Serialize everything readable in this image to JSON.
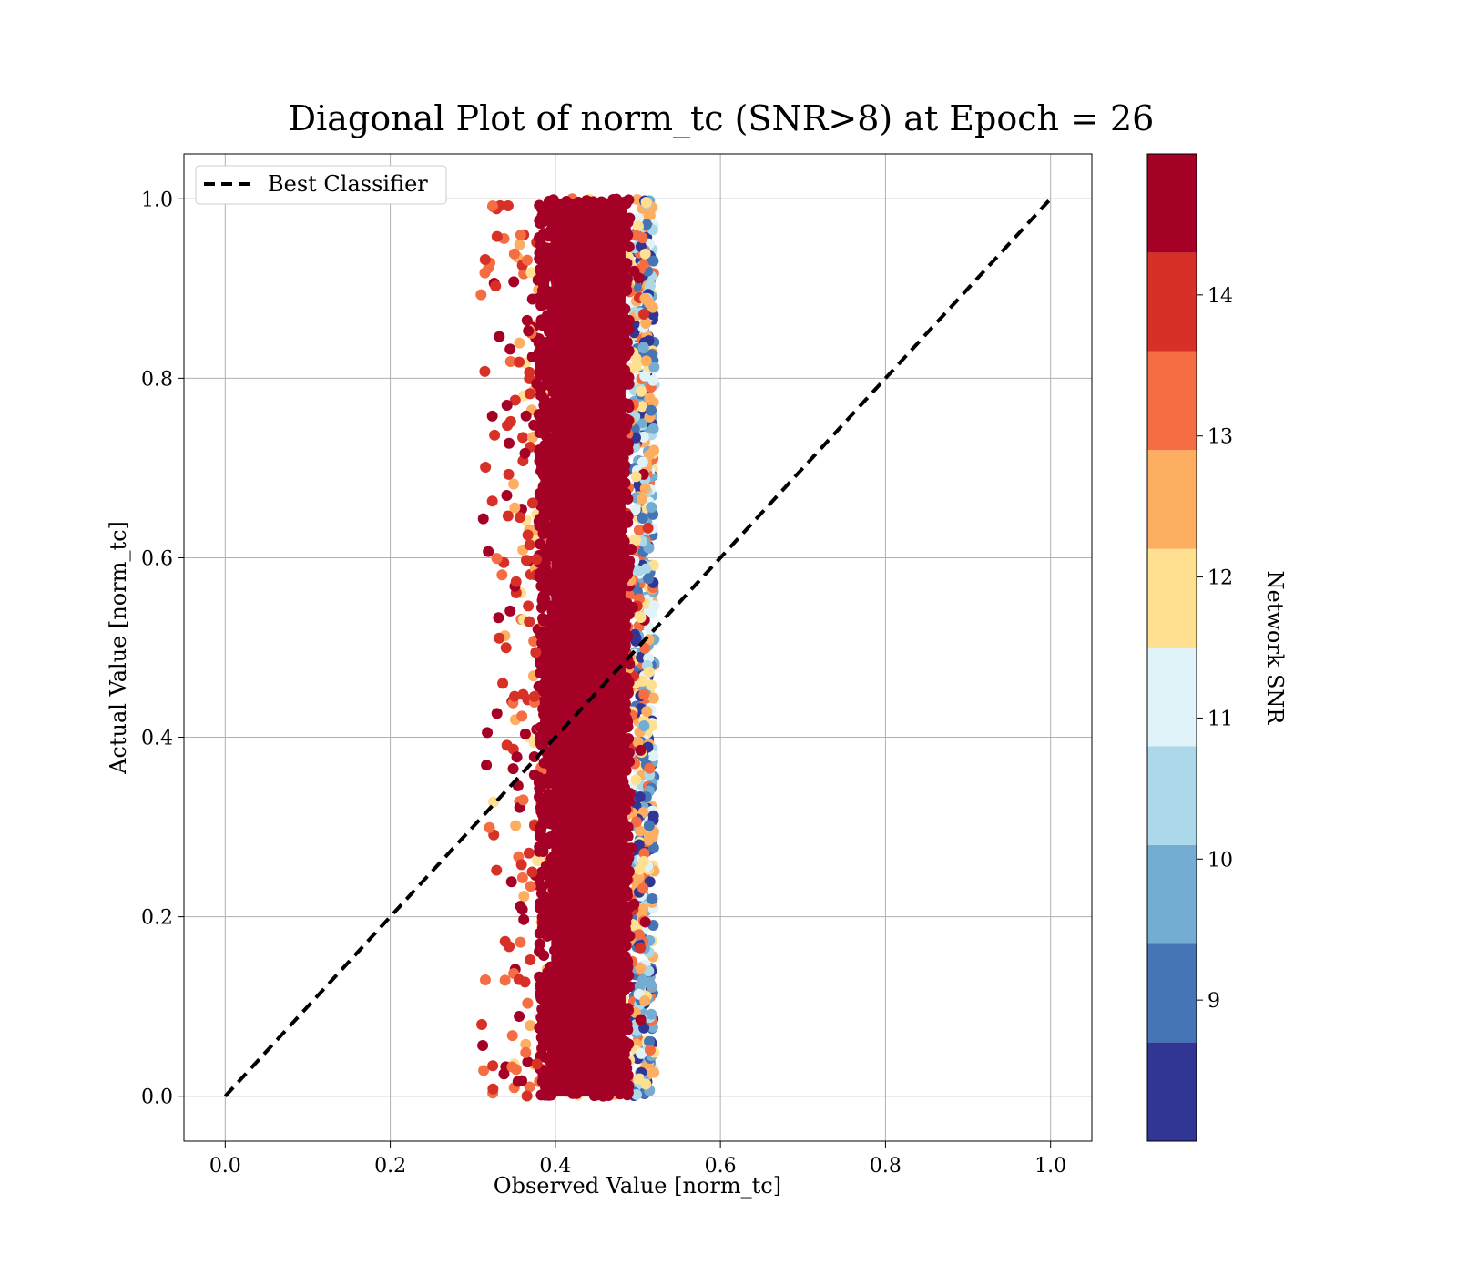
{
  "chart_data": {
    "type": "scatter",
    "title": "Diagonal Plot of norm_tc (SNR>8) at Epoch = 26",
    "xlabel": "Observed Value [norm_tc]",
    "ylabel": "Actual Value [norm_tc]",
    "xlim": [
      -0.05,
      1.05
    ],
    "ylim": [
      -0.05,
      1.05
    ],
    "xticks": [
      "0.0",
      "0.2",
      "0.4",
      "0.6",
      "0.8",
      "1.0"
    ],
    "yticks": [
      "0.0",
      "0.2",
      "0.4",
      "0.6",
      "0.8",
      "1.0"
    ],
    "grid": true,
    "legend": {
      "placement": "top-left",
      "entries": [
        "Best Classifier"
      ]
    },
    "reference_line": {
      "name": "Best Classifier",
      "style": "dashed",
      "color": "#000000",
      "x": [
        0.0,
        1.0
      ],
      "y": [
        0.0,
        1.0
      ]
    },
    "scatter": {
      "x_range": [
        0.3,
        0.52
      ],
      "y_range": [
        0.0,
        1.0
      ],
      "dense_core_x_range": [
        0.38,
        0.49
      ],
      "color_by": "Network SNR",
      "description_values": {
        "high_snr_region_x": [
          0.38,
          0.49
        ],
        "low_snr_edge_x": [
          0.49,
          0.52
        ]
      }
    },
    "colorbar": {
      "label": "Network SNR",
      "range": [
        8.0,
        15.0
      ],
      "ticks": [
        "9",
        "10",
        "11",
        "12",
        "13",
        "14"
      ],
      "bands": [
        {
          "from": 8.0,
          "to": 8.7,
          "color": "#313695"
        },
        {
          "from": 8.7,
          "to": 9.4,
          "color": "#4575b4"
        },
        {
          "from": 9.4,
          "to": 10.1,
          "color": "#74add1"
        },
        {
          "from": 10.1,
          "to": 10.8,
          "color": "#abd9e9"
        },
        {
          "from": 10.8,
          "to": 11.5,
          "color": "#e0f3f8"
        },
        {
          "from": 11.5,
          "to": 12.2,
          "color": "#fee090"
        },
        {
          "from": 12.2,
          "to": 12.9,
          "color": "#fdae61"
        },
        {
          "from": 12.9,
          "to": 13.6,
          "color": "#f46d43"
        },
        {
          "from": 13.6,
          "to": 14.3,
          "color": "#d73027"
        },
        {
          "from": 14.3,
          "to": 15.0,
          "color": "#a50026"
        }
      ]
    }
  }
}
